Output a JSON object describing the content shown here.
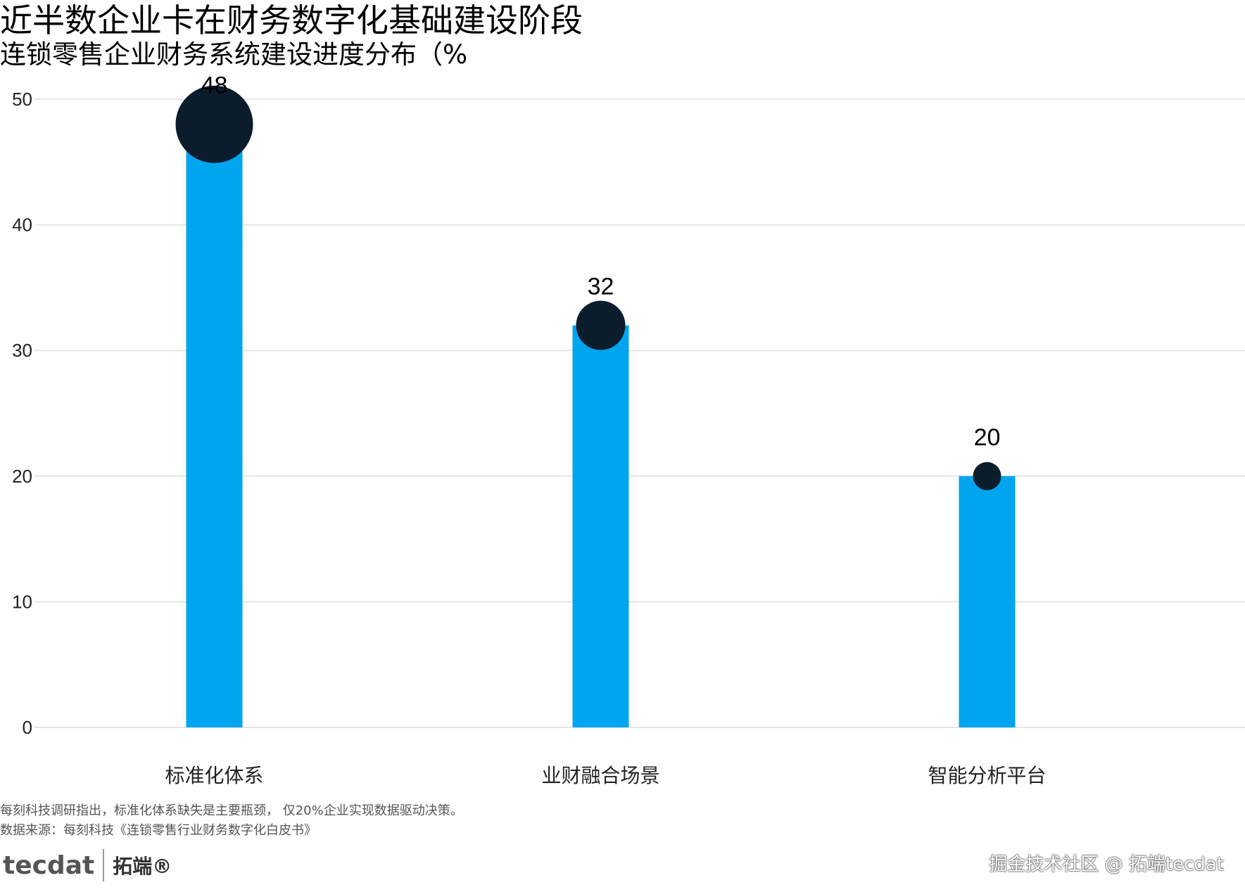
{
  "title": "近半数企业卡在财务数字化基础建设阶段",
  "subtitle": "连锁零售企业财务系统建设进度分布（%",
  "chart_data": {
    "type": "bar",
    "categories": [
      "标准化体系",
      "业财融合场景",
      "智能分析平台"
    ],
    "values": [
      48,
      32,
      20
    ],
    "data_labels": [
      "48",
      "32",
      "20"
    ],
    "xlabel": "",
    "ylabel": "",
    "ylim": [
      0,
      50
    ],
    "yticks": [
      0,
      10,
      20,
      30,
      40,
      50
    ],
    "grid": true,
    "markers": "circle sized by value at bar top",
    "colors": {
      "bar": "#00a5ef",
      "marker": "#0b1c2c",
      "grid": "#e5e5e5"
    }
  },
  "footer": {
    "note": "每刻科技调研指出，标准化体系缺失是主要瓶颈， 仅20%企业实现数据驱动决策。",
    "source": "数据来源：每刻科技《连锁零售行业财务数字化白皮书》",
    "logo_text": "tecdat",
    "logo_cn": "拓端®",
    "watermark": "掘金技术社区 @ 拓端tecdat"
  }
}
